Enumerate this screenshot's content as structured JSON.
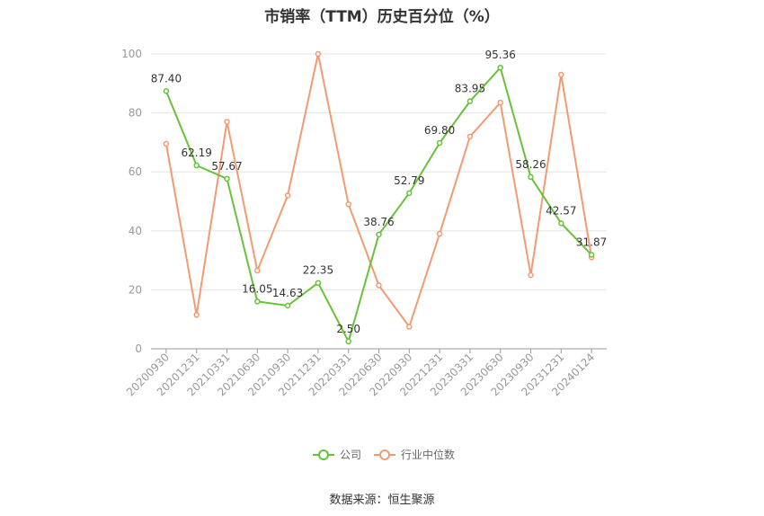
{
  "chart_data": {
    "type": "line",
    "title": "市销率（TTM）历史百分位（%）",
    "categories": [
      "20200930",
      "20201231",
      "20210331",
      "20210630",
      "20210930",
      "20211231",
      "20220331",
      "20220630",
      "20220930",
      "20221231",
      "20230331",
      "20230630",
      "20230930",
      "20231231",
      "20240124"
    ],
    "series": [
      {
        "name": "公司",
        "values": [
          87.4,
          62.19,
          57.67,
          16.05,
          14.63,
          22.35,
          2.5,
          38.76,
          52.79,
          69.8,
          83.95,
          95.36,
          58.26,
          42.57,
          31.87
        ],
        "color": "#67c23a"
      },
      {
        "name": "行业中位数",
        "values": [
          69.5,
          11.5,
          77.0,
          26.5,
          52.0,
          100.0,
          49.0,
          21.5,
          7.5,
          39.0,
          72.0,
          83.5,
          25.0,
          93.0,
          31.0
        ],
        "color": "#f39a73"
      }
    ],
    "ylim": [
      0,
      100
    ],
    "yticks": [
      0,
      20,
      40,
      60,
      80,
      100
    ],
    "grid": true,
    "legend": "bottom-center",
    "data_labels_series": "公司"
  },
  "source": "数据来源：恒生聚源"
}
